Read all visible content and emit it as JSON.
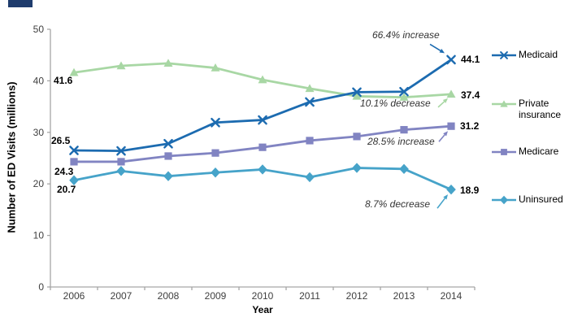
{
  "chart_data": {
    "type": "line",
    "x": [
      2006,
      2007,
      2008,
      2009,
      2010,
      2011,
      2012,
      2013,
      2014
    ],
    "xlabel": "Year",
    "ylabel": "Number of ED  Visits (millions)",
    "ylim": [
      0,
      50
    ],
    "yticks": [
      0,
      10,
      20,
      30,
      40,
      50
    ],
    "grid": false,
    "legend_position": "right",
    "axis_color": "#A6A6A6",
    "tick_label_color": "#3F3F3F",
    "series": [
      {
        "id": "medicaid",
        "name": "Medicaid",
        "color": "#1C6BB0",
        "marker": "x",
        "values": [
          26.5,
          26.4,
          27.8,
          31.9,
          32.4,
          35.9,
          37.8,
          37.9,
          44.1
        ],
        "start_label": "26.5",
        "end_label": "44.1",
        "annotation": "66.4% increase"
      },
      {
        "id": "private",
        "name": "Private insurance",
        "color": "#A8D7A4",
        "marker": "triangle",
        "values": [
          41.6,
          42.9,
          43.4,
          42.5,
          40.2,
          38.5,
          37.0,
          36.8,
          37.4
        ],
        "start_label": "41.6",
        "end_label": "37.4",
        "annotation": "10.1% decrease"
      },
      {
        "id": "medicare",
        "name": "Medicare",
        "color": "#8184C2",
        "marker": "square",
        "values": [
          24.3,
          24.3,
          25.4,
          26.0,
          27.1,
          28.4,
          29.2,
          30.5,
          31.2
        ],
        "start_label": "24.3",
        "end_label": "31.2",
        "annotation": "28.5% increase"
      },
      {
        "id": "uninsured",
        "name": "Uninsured",
        "color": "#46A3C9",
        "marker": "diamond",
        "values": [
          20.7,
          22.5,
          21.5,
          22.2,
          22.8,
          21.3,
          23.1,
          22.9,
          18.9
        ],
        "start_label": "20.7",
        "end_label": "18.9",
        "annotation": "8.7% decrease"
      }
    ]
  }
}
